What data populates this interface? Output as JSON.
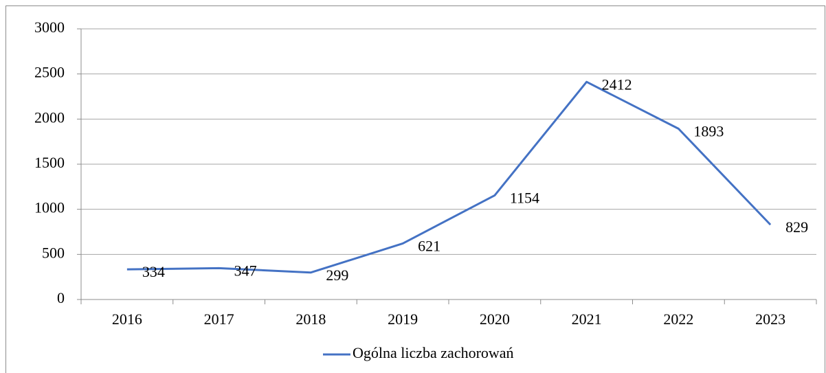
{
  "chart_data": {
    "type": "line",
    "categories": [
      "2016",
      "2017",
      "2018",
      "2019",
      "2020",
      "2021",
      "2022",
      "2023"
    ],
    "series": [
      {
        "name": "Ogólna liczba zachorowań",
        "color": "#4472c4",
        "values": [
          334,
          347,
          299,
          621,
          1154,
          2412,
          1893,
          829
        ]
      }
    ],
    "ylim": [
      0,
      3000
    ],
    "yticks": [
      0,
      500,
      1000,
      1500,
      2000,
      2500,
      3000
    ],
    "grid": true,
    "legend": "bottom"
  }
}
